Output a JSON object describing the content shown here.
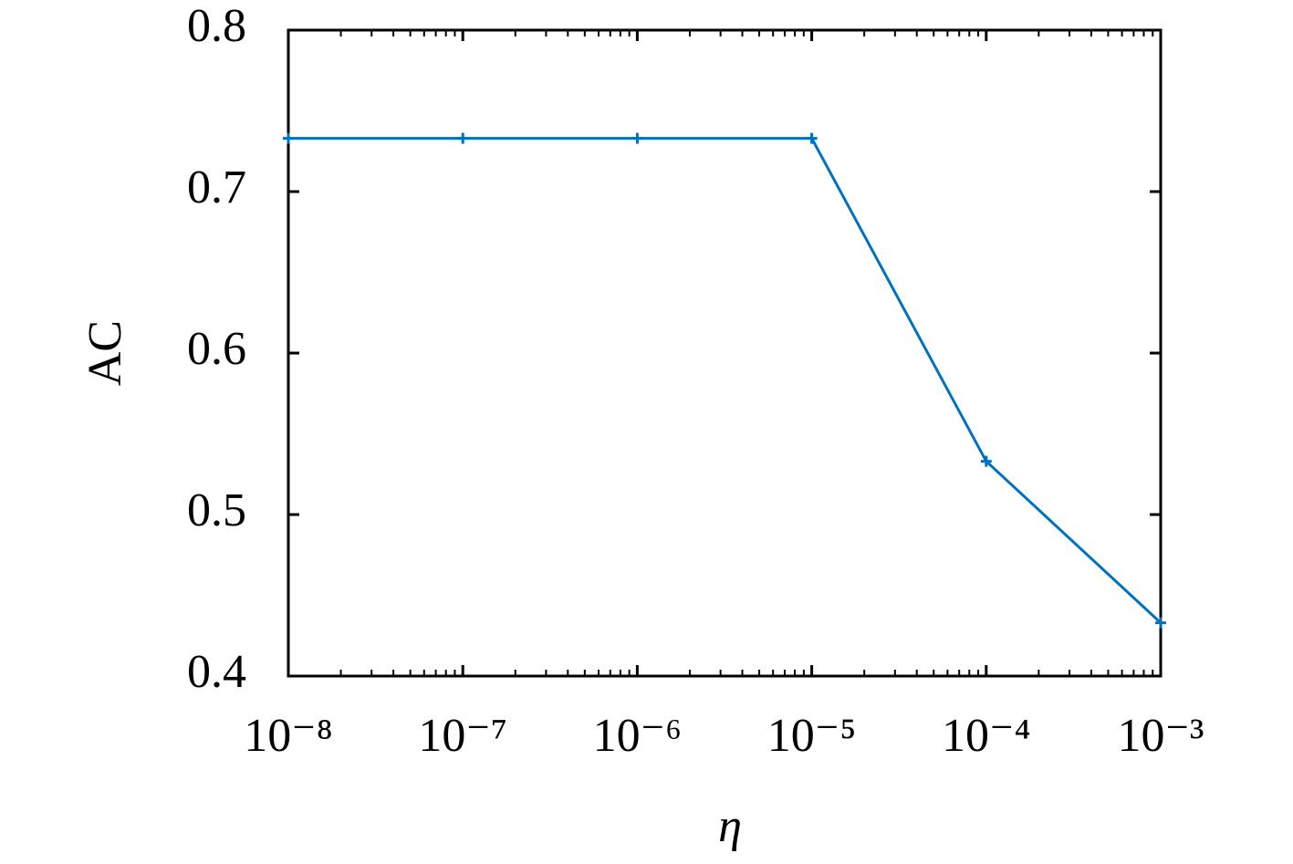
{
  "chart_data": {
    "type": "line",
    "xlabel": "η",
    "ylabel": "AC",
    "x": [
      1e-08,
      1e-07,
      1e-06,
      1e-05,
      0.0001,
      0.001
    ],
    "series": [
      {
        "name": "AC",
        "color": "#0072bd",
        "values": [
          0.733,
          0.733,
          0.733,
          0.733,
          0.533,
          0.433
        ]
      }
    ],
    "xscale": "log",
    "xlim": [
      1e-08,
      0.001
    ],
    "xticks": [
      {
        "value": 1e-08,
        "label": "10⁻⁸"
      },
      {
        "value": 1e-07,
        "label": "10⁻⁷"
      },
      {
        "value": 1e-06,
        "label": "10⁻⁶"
      },
      {
        "value": 1e-05,
        "label": "10⁻⁵"
      },
      {
        "value": 0.0001,
        "label": "10⁻⁴"
      },
      {
        "value": 0.001,
        "label": "10⁻³"
      }
    ],
    "ylim": [
      0.4,
      0.8
    ],
    "yticks": [
      0.4,
      0.5,
      0.6,
      0.7,
      0.8
    ],
    "grid": false
  }
}
